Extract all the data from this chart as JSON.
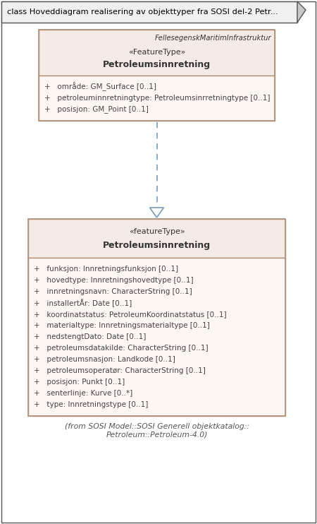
{
  "title": "class Hoveddiagram realisering av objekttyper fra SOSI del-2 Petr...",
  "bg_color": "#ffffff",
  "box_fill_header": "#f5ebe6",
  "box_fill_body": "#fdf6f2",
  "box_border": "#b0907a",
  "top_box": {
    "package_name": "FellesegenskMaritimInfrastruktur",
    "stereotype": "«FeatureType»",
    "class_name": "Petroleumsinnretning",
    "attributes": [
      "+   område: GM_Surface [0..1]",
      "+   petroleuminnretningtype: Petroleumsinrretningtype [0..1]",
      "+   posisjon: GM_Point [0..1]"
    ]
  },
  "bottom_box": {
    "stereotype": "«featureType»",
    "class_name": "Petroleumsinnretning",
    "attributes": [
      "+   funksjon: Innretningsfunksjon [0..1]",
      "+   hovedtype: Innretningshovedtype [0..1]",
      "+   innretningsnavn: CharacterString [0..1]",
      "+   installertÅr: Date [0..1]",
      "+   koordinatstatus: PetroleumKoordinatstatus [0..1]",
      "+   materialtype: Innretningsmaterialtype [0..1]",
      "+   nedstengtDato: Date [0..1]",
      "+   petroleumsdatakilde: CharacterString [0..1]",
      "+   petroleumsnasjon: Landkode [0..1]",
      "+   petroleumsoperatør: CharacterString [0..1]",
      "+   posisjon: Punkt [0..1]",
      "+   senterlinje: Kurve [0..*]",
      "+   type: Innretningstype [0..1]"
    ],
    "note": "(from SOSI Model::SOSI Generell objektkatalog::\nPetroleum::Petroleum-4.0)"
  },
  "arrow_color": "#7799bb",
  "text_color": "#333333",
  "attr_text_color": "#444444",
  "title_bg": "#f0f0f0",
  "title_border": "#555555",
  "outer_border": "#555555"
}
